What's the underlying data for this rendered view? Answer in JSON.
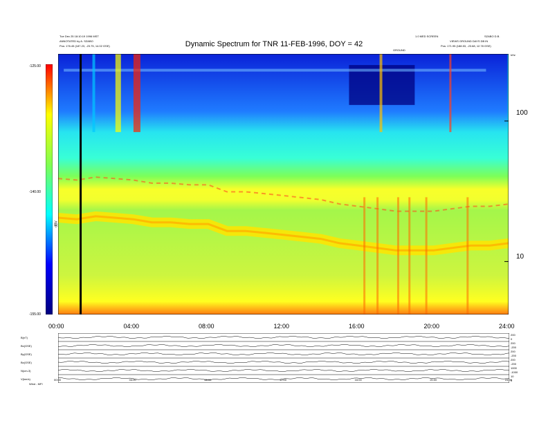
{
  "header": {
    "line1": "Tue Dec 25 18:10:19 1996 MST",
    "line2": "ANNOTATED by A. SZABO",
    "line3_left": "Pos: 176.45 (187.23, -23.75, 14.02 GSE)",
    "center_title": "Dynamic Spectrum for TNR 11-FEB-1996, DOY = 42",
    "right_line1": "1.0 MED SCREEN",
    "right_line1b": "SZABO D.B.",
    "right_line2": "VIEWS GROUND DAYS DB IN",
    "right_line3": "Pos: 171.95 (188.53, -23.68, 12.78 GSE)",
    "small_mid": "GROUND",
    "unit_label": "kHz"
  },
  "colorbar": {
    "label": "dBV",
    "ticks": [
      "-125.00",
      "-140.00",
      "-155.00"
    ]
  },
  "chart_data": {
    "type": "heatmap",
    "title": "Dynamic Spectrum for TNR 11-FEB-1996, DOY = 42",
    "x_ticks": [
      "00:00",
      "04:00",
      "08:00",
      "12:00",
      "16:00",
      "20:00",
      "24:00"
    ],
    "x_range_hours": [
      0,
      24
    ],
    "y_scale": "log",
    "y_ticks_khz": [
      "100",
      "10"
    ],
    "y_unit": "kHz",
    "color_range_dB": [
      -155,
      -125
    ],
    "colormap": [
      "#00007f",
      "#0000ff",
      "#00ffff",
      "#80ff50",
      "#ffff00",
      "#ff0000"
    ],
    "marker_line_hour": 1.2,
    "plasma_line_hours": [
      0,
      1,
      2,
      3,
      4,
      5,
      6,
      7,
      8,
      9,
      10,
      11,
      12,
      13,
      14,
      15,
      16,
      17,
      18,
      19,
      20,
      21,
      22,
      23,
      24
    ],
    "plasma_line_khz": [
      20.5,
      20.0,
      21.0,
      20.5,
      20.0,
      19.0,
      19.0,
      18.5,
      18.5,
      16.5,
      16.5,
      16.0,
      15.5,
      15.0,
      14.5,
      13.5,
      13.0,
      12.5,
      12.0,
      12.0,
      12.0,
      12.5,
      13.0,
      13.0,
      13.5
    ]
  },
  "bottom_panels": {
    "left_labels": [
      "B(nT)",
      "Bx(GSE)",
      "By(GSE)",
      "Bz(GSE)",
      "N(cm-3)",
      "V(km/s)"
    ],
    "right_labels": [
      [
        "200",
        "0"
      ],
      [
        "200",
        "-200"
      ],
      [
        "200",
        "-200"
      ],
      [
        "200",
        "-200"
      ],
      [
        "1000",
        "-1000"
      ],
      [
        "10",
        "0"
      ]
    ],
    "x_ticks": [
      "00:00",
      "04:00",
      "08:00",
      "12:00",
      "16:00",
      "20:00",
      "24:00"
    ],
    "footer_left": "Wind - MFI"
  }
}
